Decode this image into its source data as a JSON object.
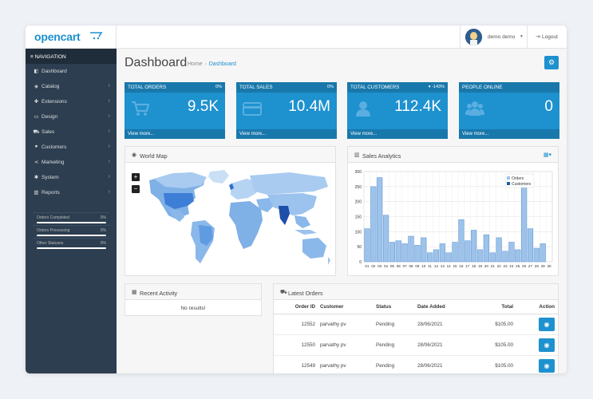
{
  "header": {
    "logo_text": "opencart",
    "user_name": "demo demo",
    "logout_label": "Logout"
  },
  "sidebar": {
    "nav_title": "NAVIGATION",
    "items": [
      {
        "label": "Dashboard",
        "icon": "dashboard-icon",
        "has_children": false
      },
      {
        "label": "Catalog",
        "icon": "tag-icon",
        "has_children": true
      },
      {
        "label": "Extensions",
        "icon": "puzzle-icon",
        "has_children": true
      },
      {
        "label": "Design",
        "icon": "monitor-icon",
        "has_children": true
      },
      {
        "label": "Sales",
        "icon": "cart-icon",
        "has_children": true
      },
      {
        "label": "Customers",
        "icon": "user-icon",
        "has_children": true
      },
      {
        "label": "Marketing",
        "icon": "share-icon",
        "has_children": true
      },
      {
        "label": "System",
        "icon": "cog-icon",
        "has_children": true
      },
      {
        "label": "Reports",
        "icon": "bar-chart-icon",
        "has_children": true
      }
    ],
    "progress": [
      {
        "label": "Orders Completed",
        "value": "0%"
      },
      {
        "label": "Orders Processing",
        "value": "0%"
      },
      {
        "label": "Other Statuses",
        "value": "0%"
      }
    ]
  },
  "page": {
    "title": "Dashboard",
    "breadcrumb": [
      "Home",
      "Dashboard"
    ]
  },
  "tiles": [
    {
      "title": "TOTAL ORDERS",
      "badge": "0%",
      "value": "9.5K",
      "more": "View more...",
      "icon": "cart-icon"
    },
    {
      "title": "TOTAL SALES",
      "badge": "0%",
      "value": "10.4M",
      "more": "View more...",
      "icon": "credit-card-icon"
    },
    {
      "title": "TOTAL CUSTOMERS",
      "badge": "-143%",
      "value": "112.4K",
      "more": "View more...",
      "icon": "user-icon"
    },
    {
      "title": "PEOPLE ONLINE",
      "badge": "",
      "value": "0",
      "more": "View more...",
      "icon": "users-icon"
    }
  ],
  "map_panel": {
    "title": "World Map",
    "zoom_in": "+",
    "zoom_out": "−"
  },
  "sales_panel": {
    "title": "Sales Analytics"
  },
  "activity_panel": {
    "title": "Recent Activity",
    "empty": "No results!"
  },
  "orders_panel": {
    "title": "Latest Orders",
    "columns": [
      "Order ID",
      "Customer",
      "Status",
      "Date Added",
      "Total",
      "Action"
    ],
    "rows": [
      {
        "id": "12552",
        "customer": "parvathy pv",
        "status": "Pending",
        "date": "28/06/2021",
        "total": "$105.00"
      },
      {
        "id": "12550",
        "customer": "parvathy pv",
        "status": "Pending",
        "date": "28/06/2021",
        "total": "$105.00"
      },
      {
        "id": "12549",
        "customer": "parvathy pv",
        "status": "Pending",
        "date": "28/06/2021",
        "total": "$105.00"
      }
    ]
  },
  "colors": {
    "accent": "#1e91cf",
    "sidebar": "#2c3e50",
    "orders_bar": "#9dc3ea",
    "customers_bar": "#1f5fa8"
  },
  "chart_data": {
    "type": "bar",
    "categories": [
      "01",
      "02",
      "03",
      "04",
      "05",
      "06",
      "07",
      "08",
      "09",
      "10",
      "11",
      "12",
      "13",
      "14",
      "15",
      "16",
      "17",
      "18",
      "19",
      "20",
      "21",
      "22",
      "23",
      "24",
      "25",
      "26",
      "27",
      "28",
      "29",
      "30"
    ],
    "series": [
      {
        "name": "Orders",
        "values": [
          110,
          250,
          280,
          155,
          65,
          70,
          60,
          85,
          55,
          80,
          30,
          40,
          60,
          30,
          65,
          140,
          70,
          105,
          40,
          90,
          30,
          80,
          35,
          65,
          40,
          245,
          110,
          45,
          60,
          0
        ]
      },
      {
        "name": "Customers",
        "values": [
          0,
          0,
          0,
          0,
          0,
          0,
          0,
          0,
          0,
          0,
          0,
          0,
          0,
          0,
          0,
          0,
          0,
          0,
          0,
          0,
          0,
          0,
          0,
          0,
          0,
          0,
          0,
          0,
          0,
          0
        ]
      }
    ],
    "ylim": [
      0,
      300
    ],
    "yticks": [
      0,
      50,
      100,
      150,
      200,
      250,
      300
    ],
    "grid": true,
    "legend": "top-right"
  }
}
